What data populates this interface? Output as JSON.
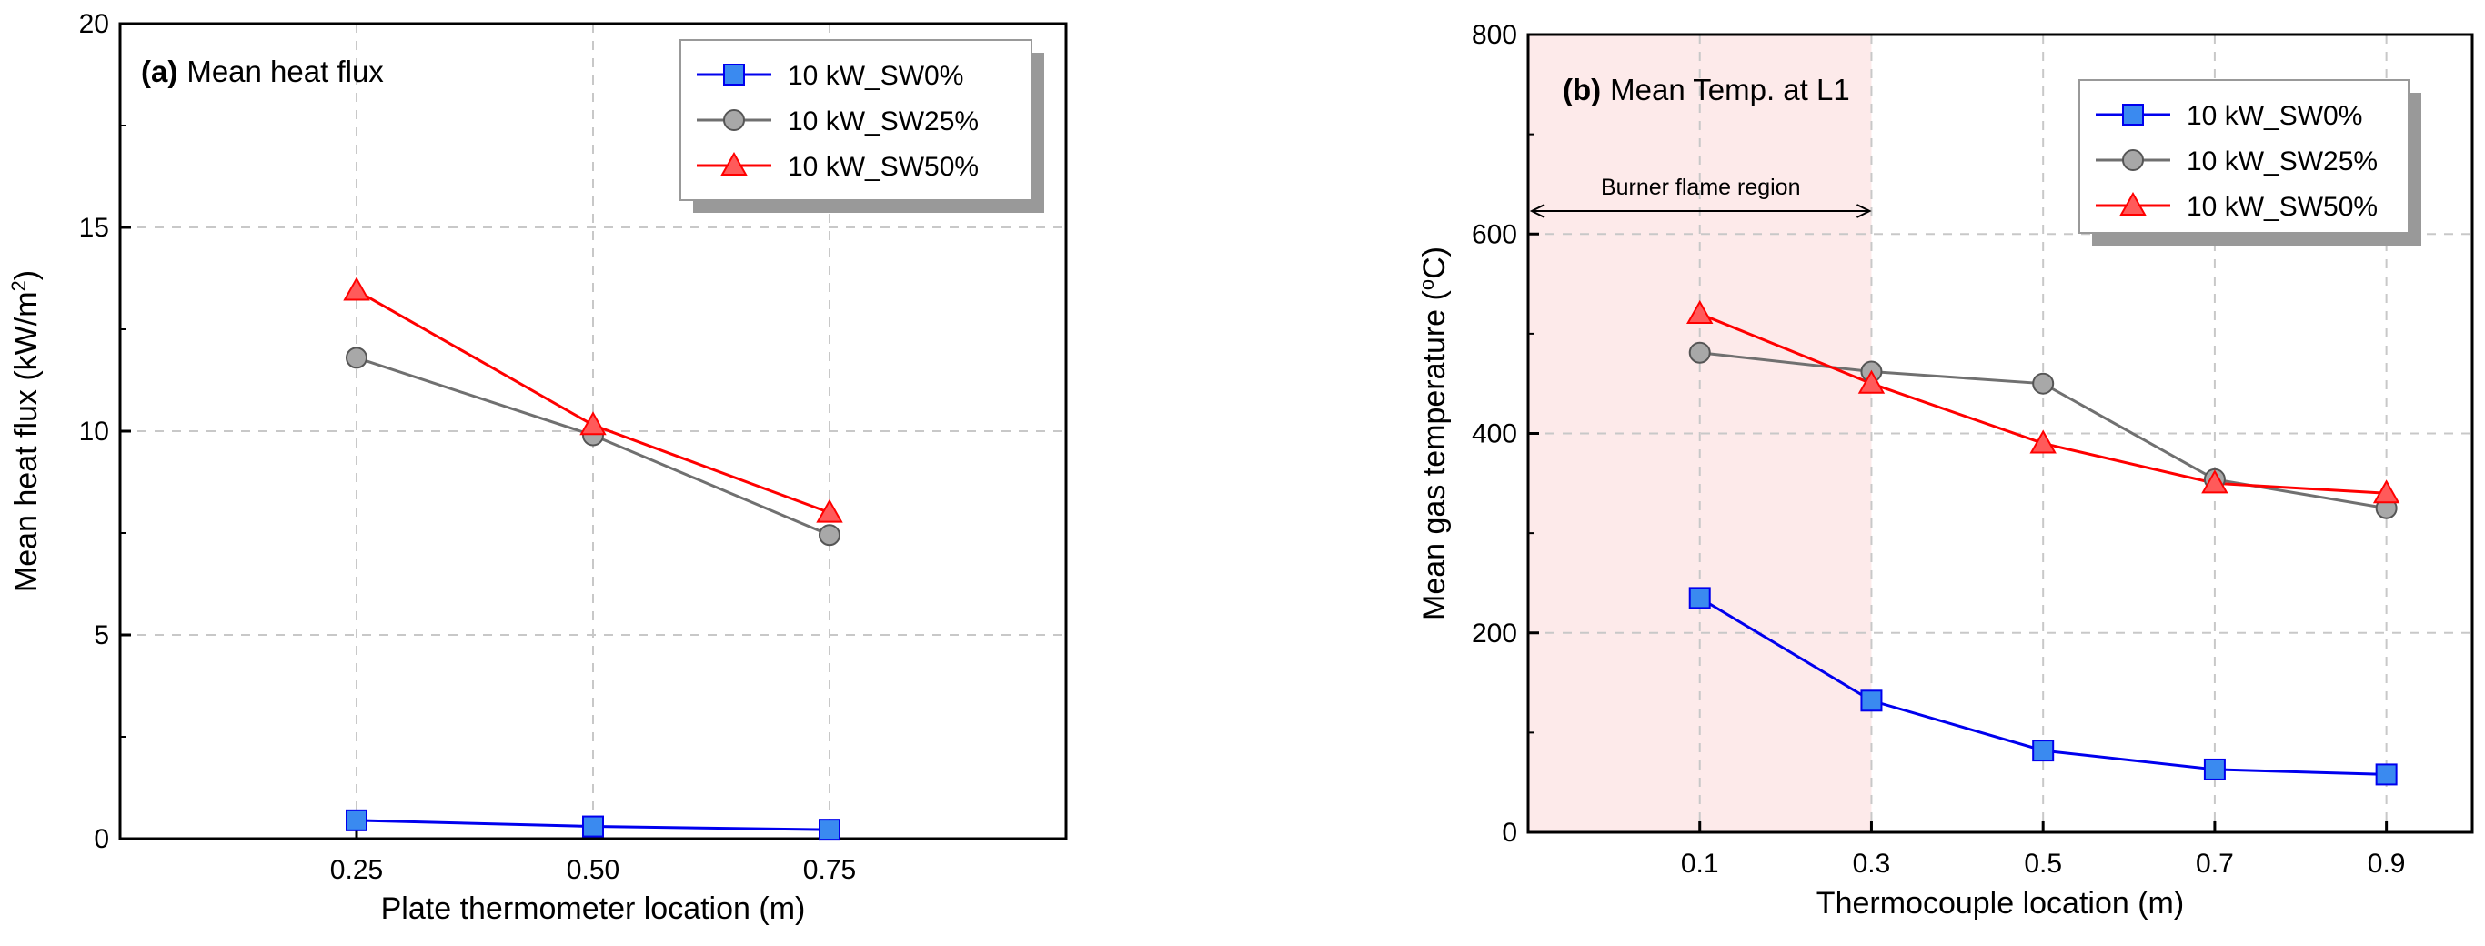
{
  "chart_data": [
    {
      "type": "line",
      "panel_letter": "(a)",
      "title": "Mean heat flux",
      "xlabel": "Plate thermometer location (m)",
      "ylabel_main": "Mean heat flux (kW/m",
      "ylabel_sup": "2",
      "ylabel_close": ")",
      "categories": [
        "0.25",
        "0.50",
        "0.75"
      ],
      "xlim": [
        0,
        4
      ],
      "x": [
        1,
        2,
        3
      ],
      "ylim": [
        0,
        20
      ],
      "yticks": [
        0,
        5,
        10,
        15,
        20
      ],
      "ytick_labels": [
        "0",
        "5",
        "10",
        "15",
        "20"
      ],
      "grid": true,
      "legend_position": "top-right",
      "series": [
        {
          "name": "10 kW_SW0%",
          "values": [
            0.45,
            0.3,
            0.22
          ],
          "color": "#0000ee",
          "marker": "square",
          "marker_fill": "#3a8af0"
        },
        {
          "name": "10 kW_SW25%",
          "values": [
            11.8,
            9.9,
            7.45
          ],
          "color": "#707070",
          "marker": "circle",
          "marker_fill": "#a8a8a8"
        },
        {
          "name": "10 kW_SW50%",
          "values": [
            13.45,
            10.15,
            8.0
          ],
          "color": "#ff0000",
          "marker": "triangle",
          "marker_fill": "#ff5a5a"
        }
      ]
    },
    {
      "type": "line",
      "panel_letter": "(b)",
      "title": "Mean Temp. at L1",
      "xlabel": "Thermocouple location (m)",
      "ylabel_main": "Mean gas temperature (",
      "ylabel_sup": "o",
      "ylabel_close": "C)",
      "categories": [
        "0.1",
        "0.3",
        "0.5",
        "0.7",
        "0.9"
      ],
      "xlim": [
        -0.1,
        1.0
      ],
      "x": [
        0.1,
        0.3,
        0.5,
        0.7,
        0.9
      ],
      "ylim": [
        0,
        800
      ],
      "yticks": [
        0,
        200,
        400,
        600,
        800
      ],
      "ytick_labels": [
        "0",
        "200",
        "400",
        "600",
        "800"
      ],
      "grid": true,
      "legend_position": "top-right",
      "shaded_region": {
        "x0": -0.1,
        "x1": 0.3,
        "label": "Burner flame region",
        "color": "#fdeaea"
      },
      "series": [
        {
          "name": "10 kW_SW0%",
          "values": [
            235,
            132,
            82,
            63,
            58
          ],
          "color": "#0000ee",
          "marker": "square",
          "marker_fill": "#3a8af0"
        },
        {
          "name": "10 kW_SW25%",
          "values": [
            481,
            462,
            450,
            354,
            325
          ],
          "color": "#707070",
          "marker": "circle",
          "marker_fill": "#a8a8a8"
        },
        {
          "name": "10 kW_SW50%",
          "values": [
            520,
            450,
            390,
            350,
            340
          ],
          "color": "#ff0000",
          "marker": "triangle",
          "marker_fill": "#ff5a5a"
        }
      ]
    }
  ]
}
